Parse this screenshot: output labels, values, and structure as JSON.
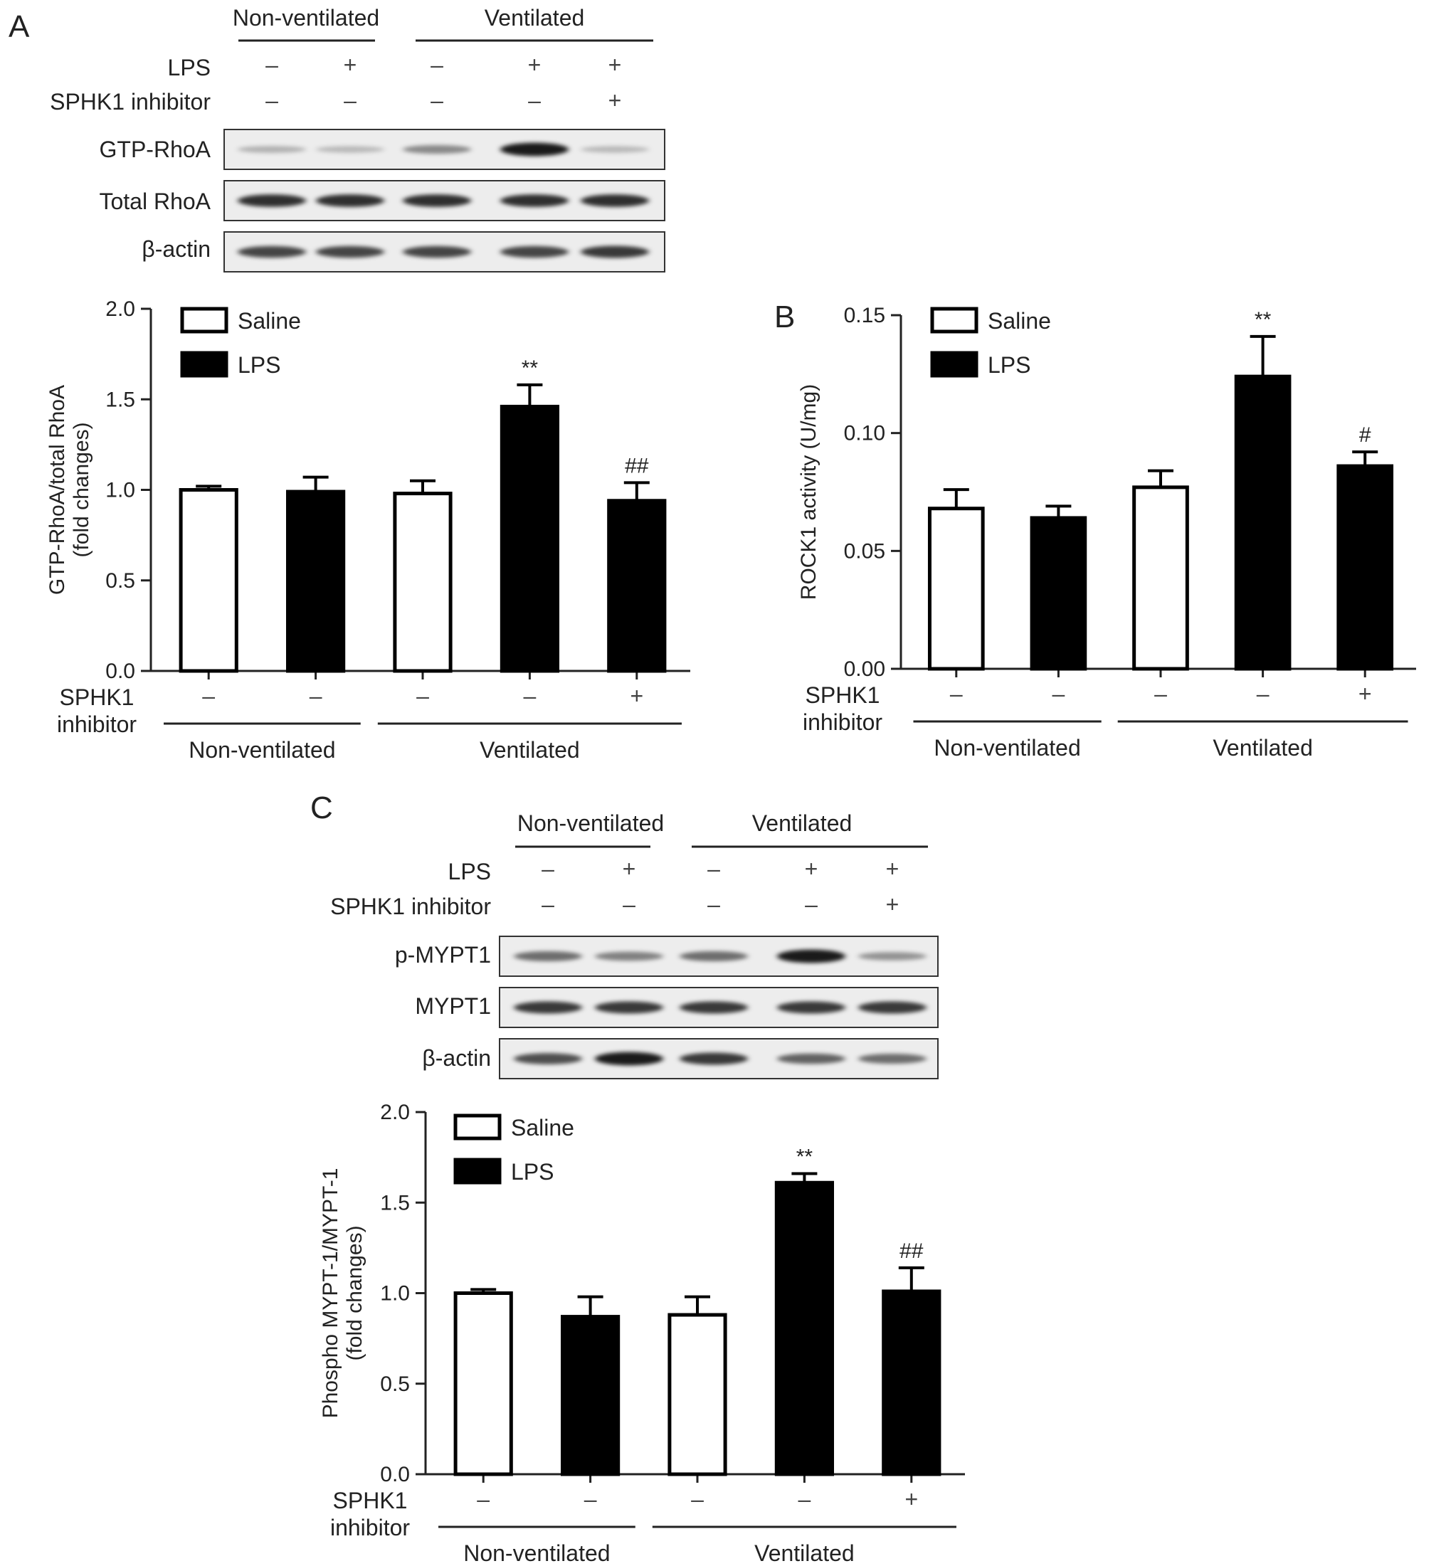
{
  "panels": [
    {
      "letter": "A",
      "blot": {
        "groups": [
          "Non-ventilated",
          "Ventilated"
        ],
        "treatments": [
          {
            "label": "LPS",
            "signs": [
              "–",
              "+",
              "–",
              "+",
              "+"
            ]
          },
          {
            "label": "SPHK1 inhibitor",
            "signs": [
              "–",
              "–",
              "–",
              "–",
              "+"
            ]
          }
        ],
        "rows": [
          {
            "label": "GTP-RhoA",
            "intensities": [
              0.15,
              0.12,
              0.35,
              0.9,
              0.12
            ]
          },
          {
            "label": "Total RhoA",
            "intensities": [
              0.8,
              0.8,
              0.8,
              0.8,
              0.8
            ]
          },
          {
            "label": "β-actin",
            "intensities": [
              0.7,
              0.7,
              0.7,
              0.7,
              0.75
            ]
          }
        ]
      },
      "chart_data": {
        "type": "bar",
        "ylabel_lines": [
          "GTP-RhoA/total RhoA",
          "(fold changes)"
        ],
        "ylim": [
          0,
          2.0
        ],
        "yticks": [
          "0.0",
          "0.5",
          "1.0",
          "1.5",
          "2.0"
        ],
        "legend": [
          {
            "name": "Saline",
            "color": "#ffffff"
          },
          {
            "name": "LPS",
            "color": "#000000"
          }
        ],
        "legend_position": "top-left",
        "bars": [
          {
            "value": 1.0,
            "error": 0.02,
            "fill": "#ffffff",
            "sphk1": "–",
            "sig": ""
          },
          {
            "value": 0.99,
            "error": 0.08,
            "fill": "#000000",
            "sphk1": "–",
            "sig": ""
          },
          {
            "value": 0.98,
            "error": 0.07,
            "fill": "#ffffff",
            "sphk1": "–",
            "sig": ""
          },
          {
            "value": 1.46,
            "error": 0.12,
            "fill": "#000000",
            "sphk1": "–",
            "sig": "**"
          },
          {
            "value": 0.94,
            "error": 0.1,
            "fill": "#000000",
            "sphk1": "+",
            "sig": "##"
          }
        ],
        "row_label_lines": [
          "SPHK1",
          "inhibitor"
        ],
        "groups": [
          "Non-ventilated",
          "Ventilated"
        ]
      }
    },
    {
      "letter": "B",
      "chart_data": {
        "type": "bar",
        "ylabel_lines": [
          "ROCK1 activity (U/mg)"
        ],
        "ylim": [
          0,
          0.15
        ],
        "yticks": [
          "0.00",
          "0.05",
          "0.10",
          "0.15"
        ],
        "legend": [
          {
            "name": "Saline",
            "color": "#ffffff"
          },
          {
            "name": "LPS",
            "color": "#000000"
          }
        ],
        "legend_position": "top-left",
        "bars": [
          {
            "value": 0.068,
            "error": 0.008,
            "fill": "#ffffff",
            "sphk1": "–",
            "sig": ""
          },
          {
            "value": 0.064,
            "error": 0.005,
            "fill": "#000000",
            "sphk1": "–",
            "sig": ""
          },
          {
            "value": 0.077,
            "error": 0.007,
            "fill": "#ffffff",
            "sphk1": "–",
            "sig": ""
          },
          {
            "value": 0.124,
            "error": 0.017,
            "fill": "#000000",
            "sphk1": "–",
            "sig": "**"
          },
          {
            "value": 0.086,
            "error": 0.006,
            "fill": "#000000",
            "sphk1": "+",
            "sig": "#"
          }
        ],
        "row_label_lines": [
          "SPHK1",
          "inhibitor"
        ],
        "groups": [
          "Non-ventilated",
          "Ventilated"
        ]
      }
    },
    {
      "letter": "C",
      "blot": {
        "groups": [
          "Non-ventilated",
          "Ventilated"
        ],
        "treatments": [
          {
            "label": "LPS",
            "signs": [
              "–",
              "+",
              "–",
              "+",
              "+"
            ]
          },
          {
            "label": "SPHK1 inhibitor",
            "signs": [
              "–",
              "–",
              "–",
              "–",
              "+"
            ]
          }
        ],
        "rows": [
          {
            "label": "p-MYPT1",
            "intensities": [
              0.5,
              0.4,
              0.5,
              0.9,
              0.3
            ]
          },
          {
            "label": "MYPT1",
            "intensities": [
              0.75,
              0.75,
              0.75,
              0.75,
              0.75
            ]
          },
          {
            "label": "β-actin",
            "intensities": [
              0.65,
              0.9,
              0.75,
              0.55,
              0.5
            ]
          }
        ]
      },
      "chart_data": {
        "type": "bar",
        "ylabel_lines": [
          "Phospho MYPT-1/MYPT-1",
          "(fold changes)"
        ],
        "ylim": [
          0,
          2.0
        ],
        "yticks": [
          "0.0",
          "0.5",
          "1.0",
          "1.5",
          "2.0"
        ],
        "legend": [
          {
            "name": "Saline",
            "color": "#ffffff"
          },
          {
            "name": "LPS",
            "color": "#000000"
          }
        ],
        "legend_position": "top-left",
        "bars": [
          {
            "value": 1.0,
            "error": 0.02,
            "fill": "#ffffff",
            "sphk1": "–",
            "sig": ""
          },
          {
            "value": 0.87,
            "error": 0.11,
            "fill": "#000000",
            "sphk1": "–",
            "sig": ""
          },
          {
            "value": 0.88,
            "error": 0.1,
            "fill": "#ffffff",
            "sphk1": "–",
            "sig": ""
          },
          {
            "value": 1.61,
            "error": 0.05,
            "fill": "#000000",
            "sphk1": "–",
            "sig": "**"
          },
          {
            "value": 1.01,
            "error": 0.13,
            "fill": "#000000",
            "sphk1": "+",
            "sig": "##"
          }
        ],
        "row_label_lines": [
          "SPHK1",
          "inhibitor"
        ],
        "groups": [
          "Non-ventilated",
          "Ventilated"
        ]
      }
    }
  ]
}
